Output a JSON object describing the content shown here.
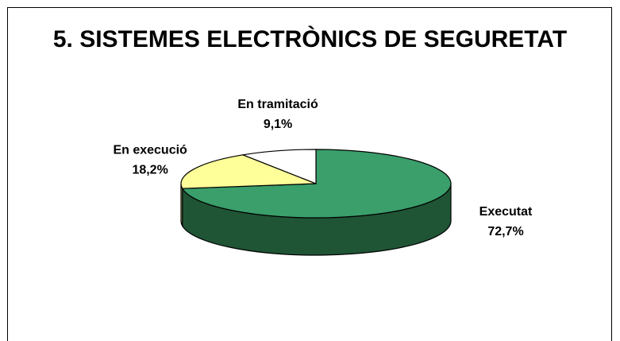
{
  "chart_data": {
    "type": "pie",
    "title": "5. SISTEMES ELECTRÒNICS DE SEGURETAT",
    "three_d": true,
    "slices": [
      {
        "label": "Executat",
        "value": 72.7,
        "value_label": "72,7%",
        "color": "#3a9f6b",
        "side_color": "#1f5535"
      },
      {
        "label": "En execució",
        "value": 18.2,
        "value_label": "18,2%",
        "color": "#ffff99",
        "side_color": "#b8b86e"
      },
      {
        "label": "En tramitació",
        "value": 9.1,
        "value_label": "9,1%",
        "color": "#ffffff",
        "side_color": "#bbbbbb"
      }
    ],
    "legend": "none"
  }
}
